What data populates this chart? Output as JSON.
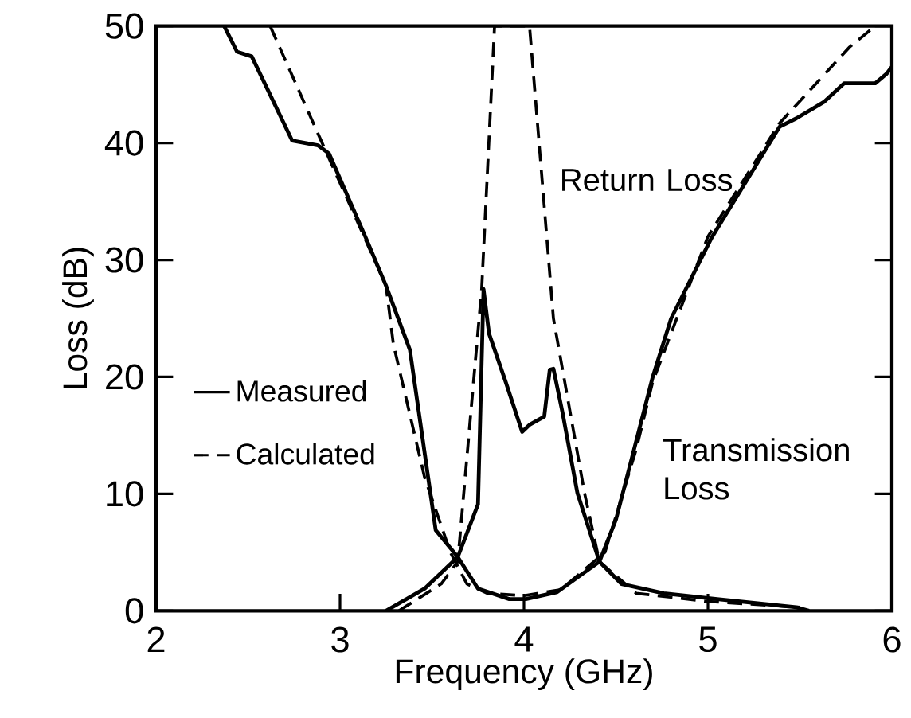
{
  "chart_data": {
    "type": "line",
    "xlabel": "Frequency (GHz)",
    "ylabel": "Loss (dB)",
    "xlim": [
      2,
      6
    ],
    "ylim": [
      0,
      50
    ],
    "xticks": [
      2,
      3,
      4,
      5,
      6
    ],
    "yticks": [
      0,
      10,
      20,
      30,
      40,
      50
    ],
    "grid": false,
    "legend": "left",
    "marker": "none",
    "series": [
      {
        "name": "Measured",
        "color": "#000000",
        "line_style": "solid",
        "x": [
          2.37,
          2.44,
          2.52,
          2.74,
          2.88,
          2.94,
          3.14,
          3.25,
          3.38,
          3.52,
          3.64,
          3.75,
          3.92,
          4.01,
          4.18,
          4.33,
          4.41,
          4.5,
          4.7,
          4.8,
          5.02,
          5.39,
          5.48,
          5.63,
          5.74,
          5.91,
          5.97,
          6.0
        ],
        "values": [
          50,
          47.8,
          47.4,
          40.2,
          39.8,
          39.1,
          31.9,
          27.8,
          22.3,
          6.9,
          4.6,
          1.9,
          1.0,
          1.0,
          1.6,
          3.3,
          4.2,
          7.8,
          20,
          25,
          31.9,
          41.4,
          42.1,
          43.5,
          45.1,
          45.1,
          45.9,
          46.5
        ]
      },
      {
        "color": "#000000",
        "line_style": "solid",
        "x": [
          3.25,
          3.46,
          3.64,
          3.75,
          3.78,
          3.81,
          3.9,
          3.99,
          4.03,
          4.11,
          4.14,
          4.16,
          4.21,
          4.29,
          4.41,
          4.53,
          4.76,
          5.05,
          5.48,
          5.55
        ],
        "values": [
          0,
          1.9,
          4.6,
          9.1,
          27.5,
          23.7,
          19.6,
          15.3,
          15.9,
          16.6,
          20.6,
          20.7,
          16.9,
          10.1,
          4.2,
          2.3,
          1.5,
          1.0,
          0.3,
          0
        ]
      },
      {
        "name": "Calculated",
        "color": "#000000",
        "line_style": "dashed",
        "x": [
          2.62,
          2.9,
          3.25,
          3.29,
          3.46,
          3.6,
          3.69,
          3.8,
          4.0,
          4.2,
          4.44,
          4.61,
          4.7,
          5.0,
          5.39,
          5.77,
          5.91
        ],
        "values": [
          50,
          40.1,
          27.8,
          22.8,
          11.4,
          5.0,
          2.3,
          1.5,
          1.3,
          1.8,
          5.0,
          13.8,
          19.6,
          32,
          41.7,
          48.2,
          50
        ]
      },
      {
        "color": "#000000",
        "line_style": "dashed",
        "x": [
          3.32,
          3.55,
          3.64,
          3.77,
          3.84,
          4.03,
          4.16,
          4.33,
          4.41,
          4.61,
          5.0,
          5.5
        ],
        "values": [
          0,
          2.3,
          4.2,
          27.5,
          50,
          50,
          25,
          10,
          4.2,
          1.5,
          0.8,
          0.3
        ]
      }
    ],
    "annotations": [
      "Return Loss",
      "Transmission Loss"
    ]
  }
}
